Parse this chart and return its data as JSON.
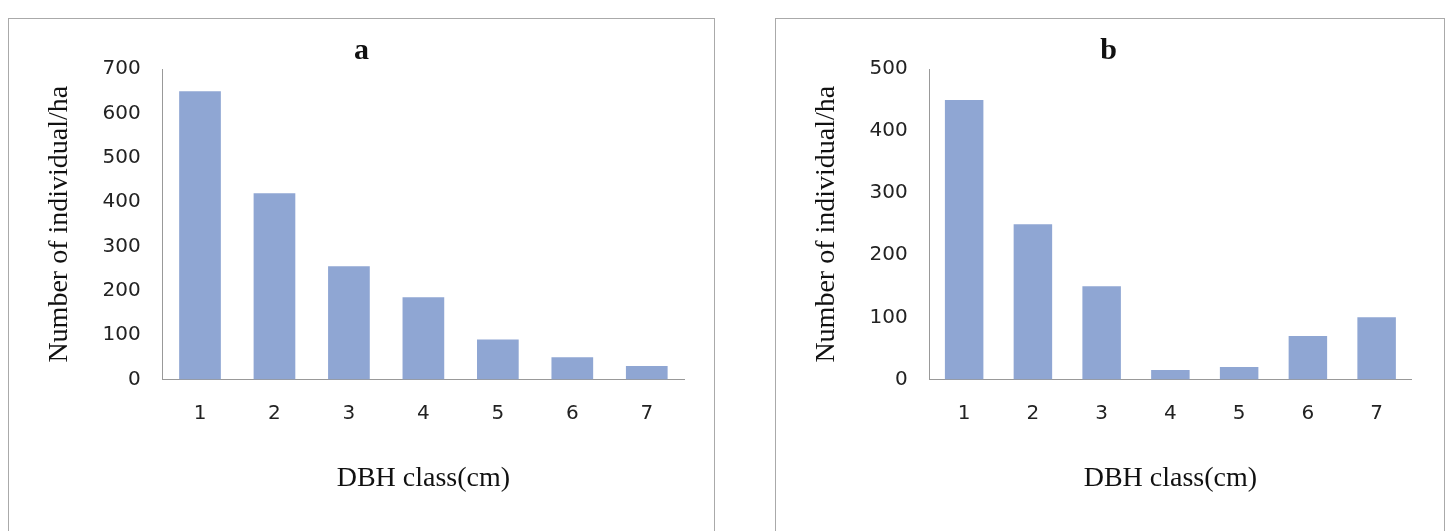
{
  "chart_data": [
    {
      "type": "bar",
      "title": "a",
      "xlabel": "DBH class(cm)",
      "ylabel": "Number of individual/ha",
      "categories": [
        "1",
        "2",
        "3",
        "4",
        "5",
        "6",
        "7"
      ],
      "values": [
        650,
        420,
        255,
        185,
        90,
        50,
        30
      ],
      "color": "#8fa6d3",
      "ylim": [
        0,
        700
      ],
      "yticks": [
        0,
        100,
        200,
        300,
        400,
        500,
        600,
        700
      ],
      "grid": false
    },
    {
      "type": "bar",
      "title": "b",
      "xlabel": "DBH class(cm)",
      "ylabel": "Number of individual/ha",
      "categories": [
        "1",
        "2",
        "3",
        "4",
        "5",
        "6",
        "7"
      ],
      "values": [
        450,
        250,
        150,
        15,
        20,
        70,
        100
      ],
      "color": "#8fa6d3",
      "ylim": [
        0,
        500
      ],
      "yticks": [
        0,
        100,
        200,
        300,
        400,
        500
      ],
      "grid": false
    }
  ]
}
